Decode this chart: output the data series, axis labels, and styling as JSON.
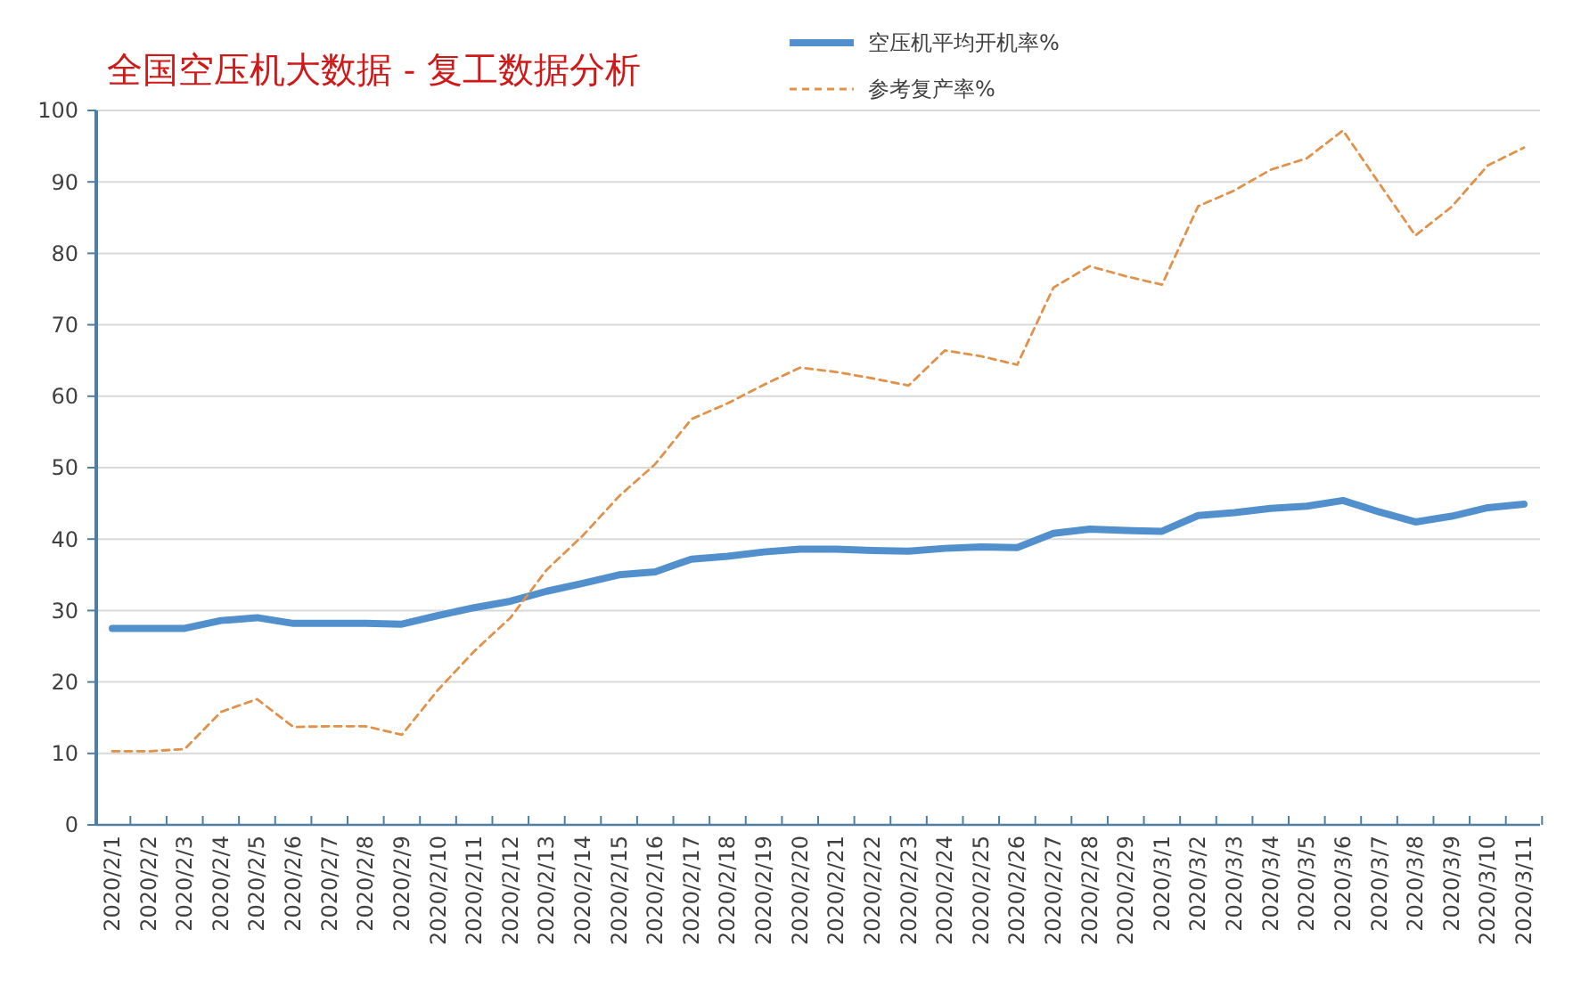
{
  "chart_data": {
    "type": "line",
    "title": "全国空压机大数据  - 复工数据分析",
    "categories": [
      "2020/2/1",
      "2020/2/2",
      "2020/2/3",
      "2020/2/4",
      "2020/2/5",
      "2020/2/6",
      "2020/2/7",
      "2020/2/8",
      "2020/2/9",
      "2020/2/10",
      "2020/2/11",
      "2020/2/12",
      "2020/2/13",
      "2020/2/14",
      "2020/2/15",
      "2020/2/16",
      "2020/2/17",
      "2020/2/18",
      "2020/2/19",
      "2020/2/20",
      "2020/2/21",
      "2020/2/22",
      "2020/2/23",
      "2020/2/24",
      "2020/2/25",
      "2020/2/26",
      "2020/2/27",
      "2020/2/28",
      "2020/2/29",
      "2020/3/1",
      "2020/3/2",
      "2020/3/3",
      "2020/3/4",
      "2020/3/5",
      "2020/3/6",
      "2020/3/7",
      "2020/3/8",
      "2020/3/9",
      "2020/3/10",
      "2020/3/11"
    ],
    "series": [
      {
        "name": "空压机平均开机率%",
        "color": "#5190cc",
        "line_style": "solid",
        "values": [
          27.5,
          27.5,
          27.5,
          28.6,
          29,
          28.2,
          28.2,
          28.2,
          28.1,
          29.3,
          30.4,
          31.3,
          32.7,
          33.8,
          35,
          35.4,
          37.2,
          37.6,
          38.2,
          38.6,
          38.6,
          38.4,
          38.3,
          38.7,
          38.9,
          38.8,
          40.8,
          41.4,
          41.2,
          41.1,
          43.3,
          43.7,
          44.3,
          44.6,
          45.4,
          43.8,
          42.4,
          43.2,
          44.4,
          44.9
        ]
      },
      {
        "name": "参考复产率%",
        "color": "#e0914a",
        "line_style": "dashed",
        "values": [
          10.3,
          10.3,
          10.6,
          15.8,
          17.6,
          13.7,
          13.8,
          13.8,
          12.6,
          18.9,
          24.3,
          29,
          35.7,
          40.5,
          46,
          50.5,
          56.8,
          59,
          61.6,
          64,
          63.4,
          62.5,
          61.5,
          66.4,
          65.6,
          64.4,
          75.2,
          78.2,
          76.8,
          75.6,
          86.6,
          88.8,
          91.7,
          93.3,
          97.2,
          89.8,
          82.5,
          86.5,
          92.3,
          94.8
        ]
      }
    ],
    "ylim": [
      0,
      100
    ],
    "yticks": [
      0,
      10,
      20,
      30,
      40,
      50,
      60,
      70,
      80,
      90,
      100
    ],
    "grid": "y",
    "legend": "top",
    "marker": "none"
  }
}
